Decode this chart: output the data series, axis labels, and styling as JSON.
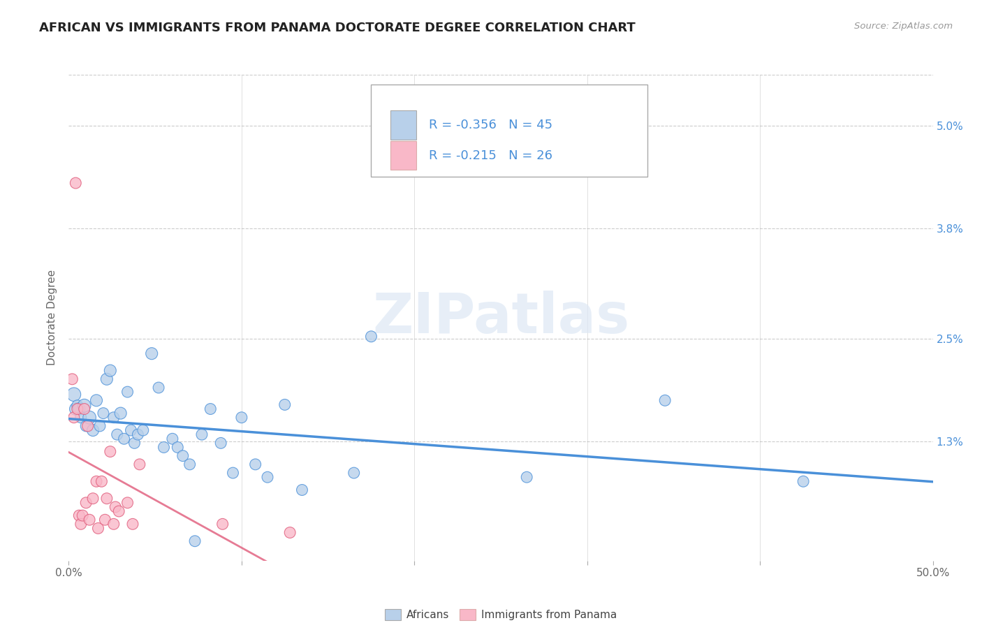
{
  "title": "AFRICAN VS IMMIGRANTS FROM PANAMA DOCTORATE DEGREE CORRELATION CHART",
  "source_text": "Source: ZipAtlas.com",
  "ylabel": "Doctorate Degree",
  "legend_label1": "Africans",
  "legend_label2": "Immigrants from Panama",
  "r1": -0.356,
  "n1": 45,
  "r2": -0.215,
  "n2": 26,
  "color1": "#b8d0ea",
  "color2": "#f9b8c8",
  "line_color1": "#4a90d9",
  "line_color2": "#e05a7a",
  "xlim": [
    0.0,
    0.5
  ],
  "ylim": [
    -0.001,
    0.056
  ],
  "xtick_vals": [
    0.0,
    0.1,
    0.2,
    0.3,
    0.4,
    0.5
  ],
  "xtick_labels": [
    "0.0%",
    "",
    "",
    "",
    "",
    "50.0%"
  ],
  "ytick_vals": [
    0.0,
    0.013,
    0.025,
    0.038,
    0.05
  ],
  "ytick_labels": [
    "",
    "1.3%",
    "2.5%",
    "3.8%",
    "5.0%"
  ],
  "africans_x": [
    0.003,
    0.004,
    0.005,
    0.006,
    0.007,
    0.009,
    0.01,
    0.012,
    0.014,
    0.016,
    0.018,
    0.02,
    0.022,
    0.024,
    0.026,
    0.028,
    0.03,
    0.032,
    0.034,
    0.036,
    0.038,
    0.04,
    0.043,
    0.048,
    0.052,
    0.055,
    0.06,
    0.063,
    0.066,
    0.07,
    0.073,
    0.077,
    0.082,
    0.088,
    0.095,
    0.1,
    0.108,
    0.115,
    0.125,
    0.135,
    0.165,
    0.175,
    0.265,
    0.345,
    0.425
  ],
  "africans_y": [
    0.0185,
    0.0168,
    0.0172,
    0.0168,
    0.0158,
    0.0172,
    0.0148,
    0.0158,
    0.0143,
    0.0178,
    0.0148,
    0.0163,
    0.0203,
    0.0213,
    0.0158,
    0.0138,
    0.0163,
    0.0133,
    0.0188,
    0.0143,
    0.0128,
    0.0138,
    0.0143,
    0.0233,
    0.0193,
    0.0123,
    0.0133,
    0.0123,
    0.0113,
    0.0103,
    0.0013,
    0.0138,
    0.0168,
    0.0128,
    0.0093,
    0.0158,
    0.0103,
    0.0088,
    0.0173,
    0.0073,
    0.0093,
    0.0253,
    0.0088,
    0.0178,
    0.0083
  ],
  "africans_size": [
    200,
    160,
    130,
    160,
    130,
    180,
    130,
    180,
    150,
    150,
    130,
    130,
    150,
    150,
    130,
    130,
    150,
    130,
    130,
    130,
    130,
    130,
    130,
    150,
    130,
    130,
    130,
    130,
    130,
    130,
    130,
    130,
    130,
    130,
    130,
    130,
    130,
    130,
    130,
    130,
    130,
    130,
    130,
    130,
    130
  ],
  "panama_x": [
    0.002,
    0.003,
    0.004,
    0.005,
    0.006,
    0.007,
    0.008,
    0.009,
    0.01,
    0.011,
    0.012,
    0.014,
    0.016,
    0.017,
    0.019,
    0.021,
    0.022,
    0.024,
    0.026,
    0.027,
    0.029,
    0.034,
    0.037,
    0.041,
    0.089,
    0.128
  ],
  "panama_y": [
    0.0203,
    0.0158,
    0.0433,
    0.0168,
    0.0043,
    0.0033,
    0.0043,
    0.0168,
    0.0058,
    0.0148,
    0.0038,
    0.0063,
    0.0083,
    0.0028,
    0.0083,
    0.0038,
    0.0063,
    0.0118,
    0.0033,
    0.0053,
    0.0048,
    0.0058,
    0.0033,
    0.0103,
    0.0033,
    0.0023
  ],
  "panama_size": [
    130,
    130,
    130,
    130,
    130,
    130,
    130,
    130,
    130,
    130,
    130,
    130,
    130,
    130,
    130,
    130,
    130,
    130,
    130,
    130,
    130,
    130,
    130,
    130,
    130,
    130
  ],
  "watermark": "ZIPatlas",
  "background_color": "#ffffff",
  "grid_color": "#cccccc",
  "title_fontsize": 13,
  "axis_label_fontsize": 11,
  "tick_fontsize": 11
}
